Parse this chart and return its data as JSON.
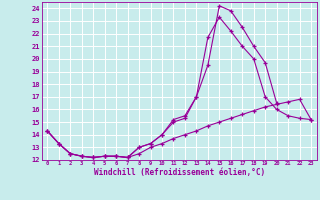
{
  "xlabel": "Windchill (Refroidissement éolien,°C)",
  "bg_color": "#c8ecec",
  "grid_color": "#b8d8d8",
  "line_color": "#990099",
  "xlim": [
    -0.5,
    23.5
  ],
  "ylim": [
    12,
    24.5
  ],
  "xticks": [
    0,
    1,
    2,
    3,
    4,
    5,
    6,
    7,
    8,
    9,
    10,
    11,
    12,
    13,
    14,
    15,
    16,
    17,
    18,
    19,
    20,
    21,
    22,
    23
  ],
  "yticks": [
    12,
    13,
    14,
    15,
    16,
    17,
    18,
    19,
    20,
    21,
    22,
    23,
    24
  ],
  "s1_x": [
    0,
    1,
    2,
    3,
    4,
    5,
    6,
    7,
    8,
    9,
    10,
    11,
    12,
    13,
    14,
    15,
    16,
    17,
    18,
    19,
    20
  ],
  "s1_y": [
    14.3,
    13.3,
    12.5,
    12.3,
    12.2,
    12.3,
    12.3,
    12.2,
    13.0,
    13.3,
    14.0,
    15.2,
    15.5,
    17.0,
    19.5,
    24.2,
    23.8,
    22.5,
    21.0,
    19.7,
    16.5
  ],
  "s2_x": [
    0,
    1,
    2,
    3,
    4,
    5,
    6,
    7,
    8,
    9,
    10,
    11,
    12,
    13,
    14,
    15,
    16,
    17,
    18,
    19,
    20,
    21,
    22,
    23
  ],
  "s2_y": [
    14.3,
    13.3,
    12.5,
    12.3,
    12.2,
    12.3,
    12.3,
    12.2,
    13.0,
    13.3,
    14.0,
    15.0,
    15.3,
    17.0,
    21.7,
    23.3,
    22.2,
    21.0,
    20.0,
    17.0,
    16.0,
    15.5,
    15.3,
    15.2
  ],
  "s3_x": [
    0,
    1,
    2,
    3,
    4,
    5,
    6,
    7,
    8,
    9,
    10,
    11,
    12,
    13,
    14,
    15,
    16,
    17,
    18,
    19,
    20,
    21,
    22,
    23
  ],
  "s3_y": [
    14.3,
    13.3,
    12.5,
    12.3,
    12.2,
    12.3,
    12.3,
    12.2,
    12.5,
    13.0,
    13.3,
    13.7,
    14.0,
    14.3,
    14.7,
    15.0,
    15.3,
    15.6,
    15.9,
    16.2,
    16.4,
    16.6,
    16.8,
    15.2
  ]
}
